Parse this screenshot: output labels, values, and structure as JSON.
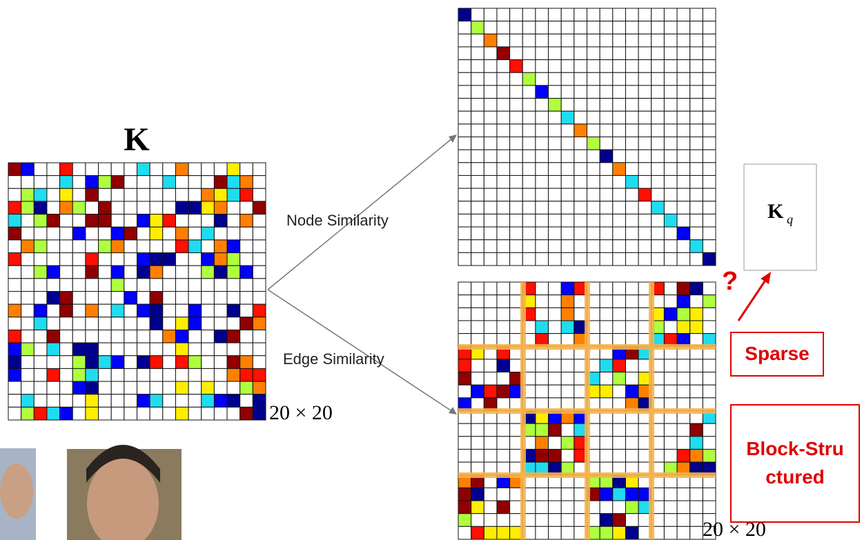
{
  "left_matrix": {
    "label": "K",
    "size": "20 × 20"
  },
  "arrows": {
    "top": "Node Similarity",
    "bottom": "Edge Similarity"
  },
  "right_matrix": {
    "size": "20 × 20"
  },
  "query": {
    "label": "K",
    "subscript": "q",
    "question": "?"
  },
  "boxes": {
    "sparse": "Sparse",
    "block": "Block-Structured"
  }
}
